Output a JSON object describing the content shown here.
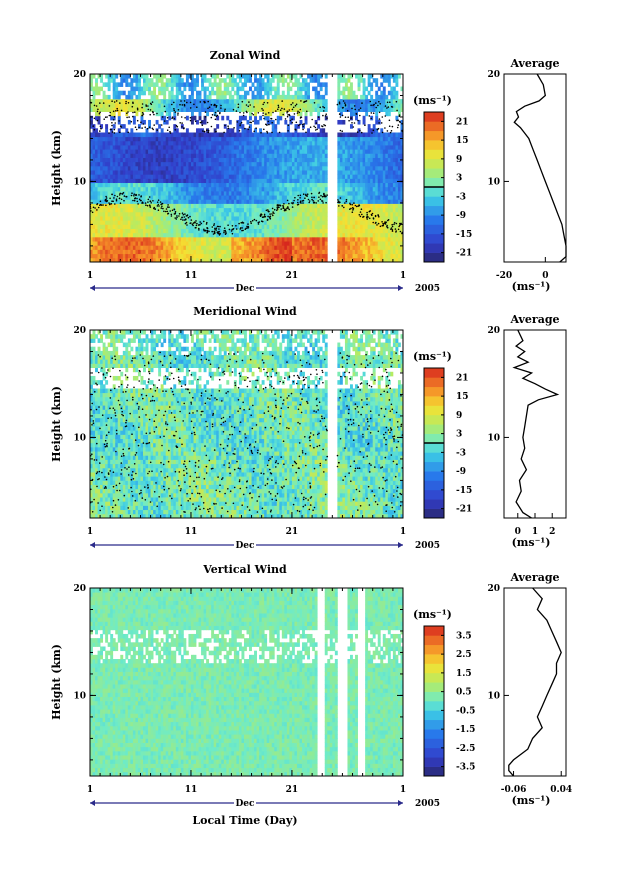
{
  "figure": {
    "bottom_label": "Local Time (Day)",
    "month_label": "Dec",
    "year_label": "2005",
    "unit_label": "(ms⁻¹)",
    "profile_title": "Average",
    "height_label": "Height (km)"
  },
  "chart_data": [
    {
      "type": "heatmap",
      "title": "Zonal Wind",
      "ylabel": "Height (km)",
      "xlabel": "Dec",
      "x_ticks": [
        "1",
        "11",
        "21",
        "1"
      ],
      "y_ticks": [
        "20",
        "10"
      ],
      "ylim": [
        2.5,
        20
      ],
      "colorbar": {
        "unit": "(ms⁻¹)",
        "ticks": [
          "21",
          "15",
          "9",
          "3",
          "-3",
          "-9",
          "-15",
          "-21"
        ],
        "range": [
          -24,
          24
        ],
        "contour_level": 0
      },
      "gaps": [
        [
          24.5,
          25.5
        ],
        [
          32.0,
          32.6
        ]
      ],
      "profile": {
        "title": "Average",
        "xlabel": "(ms⁻¹)",
        "x_ticks": [
          "-20",
          "0"
        ],
        "xlim": [
          -20,
          10
        ],
        "height_km": [
          20,
          19,
          18,
          17.5,
          17,
          16.5,
          16,
          15.5,
          15,
          14.5,
          14,
          13,
          12,
          11,
          10,
          9,
          8,
          7,
          6,
          5,
          4,
          3,
          2.5
        ],
        "wind": [
          -4,
          -1,
          0,
          -3,
          -10,
          -14,
          -13,
          -15,
          -12,
          -10,
          -8,
          -6,
          -4,
          -2,
          0,
          2,
          4,
          6,
          8,
          9,
          10,
          10,
          7
        ]
      }
    },
    {
      "type": "heatmap",
      "title": "Meridional Wind",
      "ylabel": "Height (km)",
      "xlabel": "Dec",
      "x_ticks": [
        "1",
        "11",
        "21",
        "1"
      ],
      "y_ticks": [
        "20",
        "10"
      ],
      "ylim": [
        2.5,
        20
      ],
      "colorbar": {
        "unit": "(ms⁻¹)",
        "ticks": [
          "21",
          "15",
          "9",
          "3",
          "-3",
          "-9",
          "-15",
          "-21"
        ],
        "range": [
          -24,
          24
        ],
        "contour_level": 0
      },
      "gaps": [
        [
          24.5,
          25.5
        ],
        [
          32.0,
          32.6
        ]
      ],
      "profile": {
        "title": "Average",
        "xlabel": "(ms⁻¹)",
        "x_ticks": [
          "0",
          "1",
          "2"
        ],
        "xlim": [
          -0.8,
          2.8
        ],
        "height_km": [
          20,
          19,
          18.5,
          18,
          17.5,
          17,
          16.5,
          16,
          15.5,
          15,
          14.5,
          14,
          13.5,
          13,
          12,
          11,
          10,
          9,
          8,
          7,
          6,
          5,
          4,
          3,
          2.5
        ],
        "wind": [
          0.0,
          0.3,
          -0.1,
          0.4,
          0.0,
          0.6,
          -0.2,
          0.8,
          0.3,
          1.0,
          1.6,
          2.3,
          1.2,
          0.6,
          0.5,
          0.4,
          0.3,
          0.4,
          0.2,
          0.5,
          0.1,
          0.2,
          -0.1,
          0.3,
          0.8
        ]
      }
    },
    {
      "type": "heatmap",
      "title": "Vertical Wind",
      "ylabel": "Height (km)",
      "xlabel": "Dec",
      "x_ticks": [
        "1",
        "11",
        "21",
        "1"
      ],
      "y_ticks": [
        "20",
        "10"
      ],
      "ylim": [
        2.5,
        20
      ],
      "colorbar": {
        "unit": "(ms⁻¹)",
        "ticks": [
          "3.5",
          "2.5",
          "1.5",
          "0.5",
          "-0.5",
          "-1.5",
          "-2.5",
          "-3.5"
        ],
        "range": [
          -4,
          4
        ]
      },
      "gaps": [
        [
          23.5,
          24.3
        ],
        [
          25.5,
          26.5
        ],
        [
          27.5,
          28.3
        ]
      ],
      "profile": {
        "title": "Average",
        "xlabel": "(ms⁻¹)",
        "x_ticks": [
          "-0.06",
          "0.04"
        ],
        "xlim": [
          -0.08,
          0.05
        ],
        "height_km": [
          20,
          19,
          18,
          17,
          16,
          15,
          14,
          13,
          12,
          11,
          10,
          9,
          8,
          7,
          6,
          5,
          4,
          3.5,
          3,
          2.5
        ],
        "wind": [
          -0.02,
          0.0,
          -0.01,
          0.01,
          0.02,
          0.03,
          0.04,
          0.03,
          0.03,
          0.02,
          0.01,
          0.0,
          -0.01,
          0.0,
          -0.02,
          -0.03,
          -0.06,
          -0.07,
          -0.07,
          -0.06
        ]
      }
    }
  ]
}
